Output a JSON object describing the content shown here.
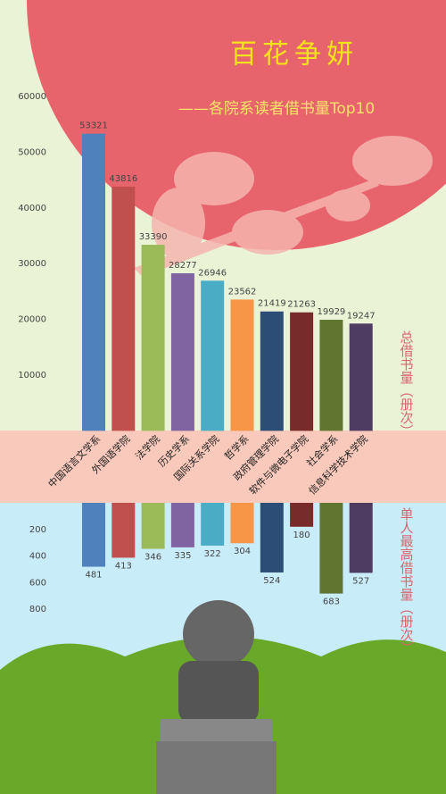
{
  "chart_data": [
    {
      "type": "bar",
      "title": "百花争妍",
      "subtitle": "——各院系读者借书量Top10",
      "y_label": "总借书量（册次）",
      "categories": [
        "中国语言文学系",
        "外国语学院",
        "法学院",
        "历史学系",
        "国际关系学院",
        "哲学系",
        "政府管理学院",
        "软件与微电子学院",
        "社会学系",
        "信息科学技术学院"
      ],
      "values": [
        53321,
        43816,
        33390,
        28277,
        26946,
        23562,
        21419,
        21263,
        19929,
        19247
      ],
      "colors": [
        "#4f81bd",
        "#c0504d",
        "#9bbb59",
        "#8064a2",
        "#4bacc6",
        "#f79646",
        "#2c4d75",
        "#772c2a",
        "#5f7530",
        "#4d3b62"
      ],
      "ylim": [
        0,
        60000
      ],
      "yticks": [
        10000,
        20000,
        30000,
        40000,
        50000,
        60000
      ]
    },
    {
      "type": "bar",
      "y_label": "单人最高借书量（册次）",
      "inverted": true,
      "values": [
        481,
        413,
        346,
        335,
        322,
        304,
        524,
        180,
        683,
        527
      ],
      "colors": [
        "#4f81bd",
        "#c0504d",
        "#9bbb59",
        "#8064a2",
        "#4bacc6",
        "#f79646",
        "#2c4d75",
        "#772c2a",
        "#5f7530",
        "#4d3b62"
      ],
      "ylim": [
        0,
        800
      ],
      "yticks": [
        200,
        400,
        600,
        800
      ]
    }
  ]
}
